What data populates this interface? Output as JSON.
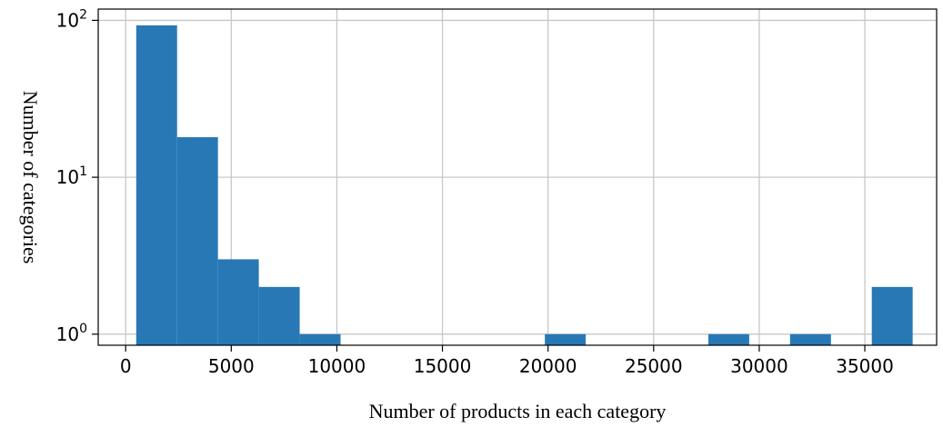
{
  "chart_data": {
    "type": "bar",
    "title": "",
    "xlabel": "Number of products in each category",
    "ylabel": "Number of categories",
    "y_scale": "log",
    "grid": true,
    "xlim": [
      -1300,
      38400
    ],
    "ylim": [
      0.85,
      118
    ],
    "x_ticks": [
      {
        "value": 0,
        "label": "0"
      },
      {
        "value": 5000,
        "label": "5000"
      },
      {
        "value": 10000,
        "label": "10000"
      },
      {
        "value": 15000,
        "label": "15000"
      },
      {
        "value": 20000,
        "label": "20000"
      },
      {
        "value": 25000,
        "label": "25000"
      },
      {
        "value": 30000,
        "label": "30000"
      },
      {
        "value": 35000,
        "label": "35000"
      }
    ],
    "y_ticks": [
      {
        "value": 1,
        "base": "10",
        "exp": "0"
      },
      {
        "value": 10,
        "base": "10",
        "exp": "1"
      },
      {
        "value": 100,
        "base": "10",
        "exp": "2"
      }
    ],
    "bin_edges": [
      500,
      2435,
      4370,
      6305,
      8240,
      10175,
      12110,
      14045,
      15980,
      17915,
      19850,
      21785,
      23720,
      25655,
      27590,
      29525,
      31460,
      33395,
      35330,
      37265
    ],
    "counts": [
      93,
      18,
      3,
      2,
      1,
      0,
      0,
      0,
      0,
      0,
      1,
      0,
      0,
      0,
      1,
      0,
      1,
      0,
      2
    ],
    "bar_color": "#2878b5",
    "grid_color": "#c8c8c8"
  }
}
